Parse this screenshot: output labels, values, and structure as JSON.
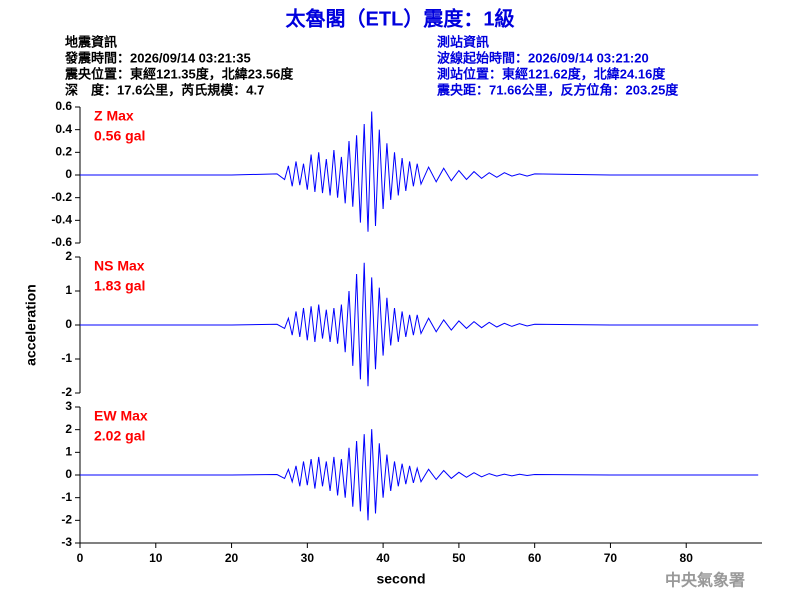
{
  "header": {
    "title": "太魯閣（ETL）震度：1級",
    "left": [
      "地震資訊",
      "發震時間：2026/09/14 03:21:35",
      "震央位置：東經121.35度，北緯23.56度",
      "深　度：17.6公里，芮氏規模：4.7"
    ],
    "right": [
      "測站資訊",
      "波線起始時間：2026/09/14 03:21:20",
      "測站位置：東經121.62度，北緯24.16度",
      "震央距：71.66公里，反方位角：203.25度"
    ]
  },
  "footer": "中央氣象署",
  "chart_data": [
    {
      "type": "line",
      "label": "Z Max",
      "max_label": "0.56 gal",
      "label_color": "#ff0000",
      "x": [
        0,
        20,
        26,
        27,
        27.5,
        28,
        28.5,
        29,
        29.5,
        30,
        30.5,
        31,
        31.5,
        32,
        32.5,
        33,
        33.5,
        34,
        34.5,
        35,
        35.5,
        36,
        36.5,
        37,
        37.5,
        38,
        38.5,
        39,
        39.5,
        40,
        40.5,
        41,
        41.5,
        42,
        42.5,
        43,
        43.5,
        44,
        44.5,
        45,
        46,
        47,
        48,
        49,
        50,
        51,
        52,
        53,
        54,
        55,
        56,
        57,
        58,
        59,
        60,
        70,
        89.5
      ],
      "series": [
        {
          "color": "#0000ff",
          "values": [
            0,
            0,
            0.01,
            -0.04,
            0.08,
            -0.1,
            0.12,
            -0.09,
            0.1,
            -0.13,
            0.18,
            -0.15,
            0.2,
            -0.16,
            0.14,
            -0.18,
            0.22,
            -0.2,
            0.16,
            -0.25,
            0.3,
            -0.28,
            0.35,
            -0.42,
            0.45,
            -0.5,
            0.56,
            -0.45,
            0.4,
            -0.3,
            0.28,
            -0.22,
            0.2,
            -0.18,
            0.15,
            -0.14,
            0.12,
            -0.1,
            0.1,
            -0.08,
            0.07,
            -0.06,
            0.06,
            -0.05,
            0.04,
            -0.04,
            0.03,
            -0.03,
            0.02,
            -0.02,
            0.02,
            -0.01,
            0.01,
            -0.01,
            0.01,
            0,
            0
          ]
        }
      ],
      "xlim": [
        0,
        90
      ],
      "ylim": [
        -0.6,
        0.6
      ],
      "yticks": [
        0.6,
        0.4,
        0.2,
        0,
        -0.2,
        -0.4,
        -0.6
      ]
    },
    {
      "type": "line",
      "label": "NS Max",
      "max_label": "1.83 gal",
      "label_color": "#ff0000",
      "ylabel": "acceleration",
      "x": [
        0,
        20,
        26,
        27,
        27.5,
        28,
        28.5,
        29,
        29.5,
        30,
        30.5,
        31,
        31.5,
        32,
        32.5,
        33,
        33.5,
        34,
        34.5,
        35,
        35.5,
        36,
        36.5,
        37,
        37.5,
        38,
        38.5,
        39,
        39.5,
        40,
        40.5,
        41,
        41.5,
        42,
        42.5,
        43,
        43.5,
        44,
        44.5,
        45,
        46,
        47,
        48,
        49,
        50,
        51,
        52,
        53,
        54,
        55,
        56,
        57,
        58,
        59,
        60,
        70,
        89.5
      ],
      "series": [
        {
          "color": "#0000ff",
          "values": [
            0,
            0,
            0.02,
            -0.1,
            0.2,
            -0.3,
            0.4,
            -0.35,
            0.5,
            -0.45,
            0.55,
            -0.5,
            0.6,
            -0.4,
            0.45,
            -0.5,
            0.5,
            -0.55,
            0.6,
            -0.8,
            1.0,
            -1.2,
            1.5,
            -1.6,
            1.83,
            -1.8,
            1.4,
            -1.3,
            1.1,
            -0.9,
            0.8,
            -0.6,
            0.5,
            -0.5,
            0.4,
            -0.35,
            0.3,
            -0.3,
            0.3,
            -0.25,
            0.2,
            -0.2,
            0.15,
            -0.15,
            0.12,
            -0.1,
            0.1,
            -0.08,
            0.08,
            -0.06,
            0.05,
            -0.04,
            0.04,
            -0.03,
            0.02,
            0,
            0
          ]
        }
      ],
      "xlim": [
        0,
        90
      ],
      "ylim": [
        -2,
        2
      ],
      "yticks": [
        2,
        1,
        0,
        -1,
        -2
      ]
    },
    {
      "type": "line",
      "label": "EW Max",
      "max_label": "2.02 gal",
      "label_color": "#ff0000",
      "xlabel": "second",
      "x": [
        0,
        20,
        26,
        27,
        27.5,
        28,
        28.5,
        29,
        29.5,
        30,
        30.5,
        31,
        31.5,
        32,
        32.5,
        33,
        33.5,
        34,
        34.5,
        35,
        35.5,
        36,
        36.5,
        37,
        37.5,
        38,
        38.5,
        39,
        39.5,
        40,
        40.5,
        41,
        41.5,
        42,
        42.5,
        43,
        43.5,
        44,
        44.5,
        45,
        46,
        47,
        48,
        49,
        50,
        51,
        52,
        53,
        54,
        55,
        56,
        57,
        58,
        59,
        60,
        70,
        89.5
      ],
      "series": [
        {
          "color": "#0000ff",
          "values": [
            0,
            0,
            0.02,
            -0.15,
            0.25,
            -0.3,
            0.4,
            -0.5,
            0.6,
            -0.45,
            0.7,
            -0.6,
            0.8,
            -0.5,
            0.6,
            -0.7,
            0.8,
            -0.9,
            0.7,
            -1.0,
            1.2,
            -1.4,
            1.5,
            -1.6,
            1.8,
            -2.0,
            2.02,
            -1.7,
            1.4,
            -1.0,
            0.9,
            -0.7,
            0.6,
            -0.5,
            0.5,
            -0.4,
            0.4,
            -0.35,
            0.3,
            -0.3,
            0.25,
            -0.2,
            0.2,
            -0.15,
            0.12,
            -0.1,
            0.1,
            -0.08,
            0.06,
            -0.05,
            0.04,
            -0.04,
            0.03,
            -0.02,
            0.02,
            0,
            0
          ]
        }
      ],
      "xlim": [
        0,
        90
      ],
      "ylim": [
        -3,
        3
      ],
      "yticks": [
        3,
        2,
        1,
        0,
        -1,
        -2,
        -3
      ],
      "xticks": [
        0,
        10,
        20,
        30,
        40,
        50,
        60,
        70,
        80
      ]
    }
  ]
}
